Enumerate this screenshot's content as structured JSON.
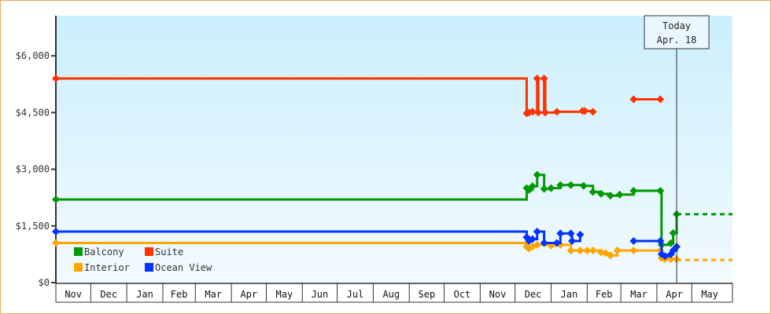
{
  "chart_data": {
    "type": "line",
    "step": true,
    "title": "",
    "xlabel": "",
    "ylabel": "",
    "ylim": [
      0,
      7000
    ],
    "xlim": [
      "2014-11-01",
      "2016-06-05"
    ],
    "y_ticks": [
      0,
      1500,
      3000,
      4500,
      6000
    ],
    "y_tick_labels": [
      "$0",
      "$1,500",
      "$3,000",
      "$4,500",
      "$6,000"
    ],
    "x_tick_labels": [
      "Nov",
      "Dec",
      "Jan",
      "Feb",
      "Mar",
      "Apr",
      "May",
      "Jun",
      "Jul",
      "Aug",
      "Sep",
      "Oct",
      "Nov",
      "Dec",
      "Jan",
      "Feb",
      "Mar",
      "Apr",
      "May"
    ],
    "month_starts": [
      "2014-11-01",
      "2014-12-01",
      "2015-01-01",
      "2015-02-01",
      "2015-03-01",
      "2015-04-01",
      "2015-05-01",
      "2015-06-01",
      "2015-07-01",
      "2015-08-01",
      "2015-09-01",
      "2015-10-01",
      "2015-11-01",
      "2015-12-01",
      "2016-01-01",
      "2016-02-01",
      "2016-03-01",
      "2016-04-01",
      "2016-05-01",
      "2016-06-01"
    ],
    "grid": false,
    "legend_placement": "bottom-left",
    "today": {
      "date": "2016-04-18",
      "label_line1": "Today",
      "label_line2": "Apr. 18"
    },
    "series": [
      {
        "name": "Balcony",
        "color": "#009900",
        "segments": [
          [
            [
              "2014-11-01",
              2200
            ],
            [
              "2015-12-11",
              2500
            ],
            [
              "2015-12-13",
              2450
            ],
            [
              "2015-12-16",
              2550
            ],
            [
              "2015-12-20",
              2850
            ],
            [
              "2015-12-26",
              2480
            ],
            [
              "2016-01-01",
              2500
            ],
            [
              "2016-01-09",
              2580
            ],
            [
              "2016-01-18",
              2580
            ],
            [
              "2016-01-29",
              2560
            ],
            [
              "2016-02-06",
              2400
            ],
            [
              "2016-02-13",
              2350
            ],
            [
              "2016-02-21",
              2300
            ],
            [
              "2016-02-29",
              2330
            ],
            [
              "2016-03-12",
              2430
            ],
            [
              "2016-04-04",
              2430
            ],
            [
              "2016-04-05",
              1000
            ],
            [
              "2016-04-13",
              1040
            ],
            [
              "2016-04-15",
              1310
            ],
            [
              "2016-04-18",
              1810
            ]
          ]
        ],
        "projection": [
          [
            "2016-04-18",
            1810
          ],
          [
            "2016-06-05",
            1810
          ]
        ]
      },
      {
        "name": "Suite",
        "color": "#ff3300",
        "segments": [
          [
            [
              "2014-11-01",
              5400
            ],
            [
              "2015-12-11",
              4480
            ],
            [
              "2015-12-13",
              4500
            ],
            [
              "2015-12-16",
              4520
            ],
            [
              "2015-12-20",
              5400
            ],
            [
              "2015-12-21",
              4500
            ],
            [
              "2015-12-26",
              5400
            ],
            [
              "2015-12-27",
              4500
            ],
            [
              "2016-01-06",
              4520
            ],
            [
              "2016-01-28",
              4540
            ],
            [
              "2016-01-30",
              4540
            ],
            [
              "2016-02-06",
              4520
            ]
          ],
          [
            [
              "2016-03-12",
              4850
            ],
            [
              "2016-04-04",
              4850
            ]
          ]
        ]
      },
      {
        "name": "Interior",
        "color": "#ffa500",
        "segments": [
          [
            [
              "2014-11-01",
              1050
            ],
            [
              "2015-12-11",
              950
            ],
            [
              "2015-12-13",
              900
            ],
            [
              "2015-12-16",
              950
            ],
            [
              "2015-12-20",
              1000
            ],
            [
              "2016-01-01",
              980
            ],
            [
              "2016-01-09",
              1000
            ],
            [
              "2016-01-18",
              850
            ],
            [
              "2016-01-26",
              850
            ],
            [
              "2016-02-01",
              850
            ],
            [
              "2016-02-06",
              850
            ],
            [
              "2016-02-13",
              800
            ],
            [
              "2016-02-17",
              780
            ],
            [
              "2016-02-21",
              720
            ],
            [
              "2016-02-27",
              850
            ],
            [
              "2016-03-12",
              850
            ],
            [
              "2016-04-04",
              850
            ],
            [
              "2016-04-05",
              650
            ],
            [
              "2016-04-08",
              620
            ],
            [
              "2016-04-13",
              620
            ],
            [
              "2016-04-18",
              620
            ]
          ]
        ],
        "projection": [
          [
            "2016-04-18",
            600
          ],
          [
            "2016-06-05",
            600
          ]
        ]
      },
      {
        "name": "Ocean View",
        "color": "#0033ff",
        "segments": [
          [
            [
              "2014-11-01",
              1350
            ],
            [
              "2015-12-11",
              1200
            ],
            [
              "2015-12-13",
              1100
            ],
            [
              "2015-12-16",
              1150
            ],
            [
              "2015-12-20",
              1350
            ],
            [
              "2015-12-26",
              1050
            ],
            [
              "2016-01-06",
              1050
            ],
            [
              "2016-01-09",
              1300
            ],
            [
              "2016-01-18",
              1300
            ],
            [
              "2016-01-19",
              1100
            ],
            [
              "2016-01-26",
              1270
            ]
          ],
          [
            [
              "2016-03-12",
              1100
            ],
            [
              "2016-04-04",
              1100
            ],
            [
              "2016-04-05",
              750
            ],
            [
              "2016-04-08",
              700
            ],
            [
              "2016-04-13",
              750
            ],
            [
              "2016-04-15",
              850
            ],
            [
              "2016-04-18",
              950
            ]
          ]
        ]
      }
    ]
  }
}
